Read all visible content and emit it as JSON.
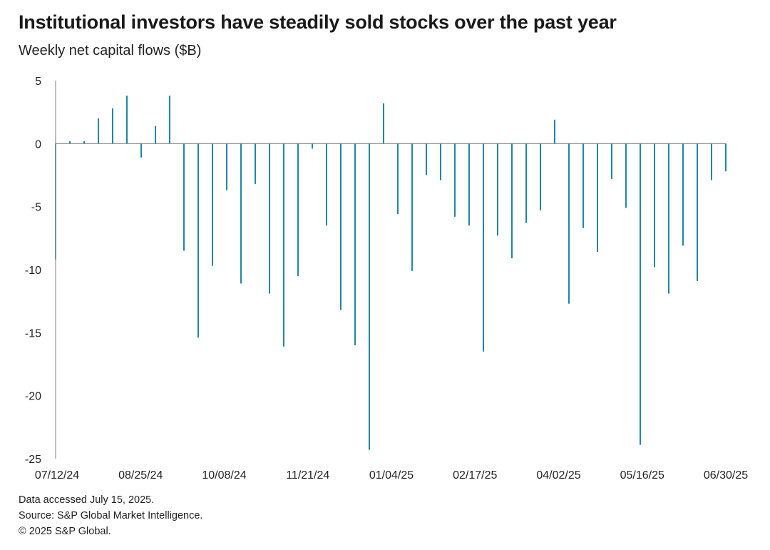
{
  "title": "Institutional investors have steadily sold stocks over the past year",
  "subtitle": "Weekly net capital flows ($B)",
  "footer": {
    "line1": "Data accessed July 15, 2025.",
    "line2": "Source: S&P Global Market Intelligence.",
    "line3": "© 2025 S&P Global."
  },
  "colors": {
    "bar": "#1b8aa3",
    "axis": "#9a9a9a",
    "text": "#222222"
  },
  "chart_data": {
    "type": "bar",
    "title": "Institutional investors have steadily sold stocks over the past year",
    "subtitle": "Weekly net capital flows ($B)",
    "xlabel": "",
    "ylabel": "",
    "ylim": [
      -25,
      5
    ],
    "yticks": [
      5,
      0,
      -5,
      -10,
      -15,
      -20,
      -25
    ],
    "ytick_labels": [
      "5",
      "0",
      "-5",
      "-10",
      "-15",
      "-20",
      "-25"
    ],
    "xtick_labels": [
      "07/12/24",
      "08/25/24",
      "10/08/24",
      "11/21/24",
      "01/04/25",
      "02/17/25",
      "04/02/25",
      "05/16/25",
      "06/30/25"
    ],
    "grid": false,
    "legend": "none",
    "series": [
      {
        "values": [
          -9.2,
          0.2,
          0.2,
          2.0,
          2.8,
          3.8,
          -1.1,
          1.4,
          3.8,
          -8.5,
          -15.4,
          -9.7,
          -3.7,
          -11.1,
          -3.2,
          -11.9,
          -16.1,
          -10.5,
          -0.4,
          -6.5,
          -13.2,
          -16.0,
          -24.3,
          3.2,
          -5.6,
          -10.1,
          -2.5,
          -2.9,
          -5.8,
          -6.5,
          -16.5,
          -7.3,
          -9.1,
          -6.3,
          -5.3,
          1.9,
          -12.7,
          -6.7,
          -8.6,
          -2.8,
          -5.1,
          -23.9,
          -9.8,
          -11.9,
          -8.1,
          -10.9,
          -2.9,
          -2.2
        ]
      }
    ]
  }
}
